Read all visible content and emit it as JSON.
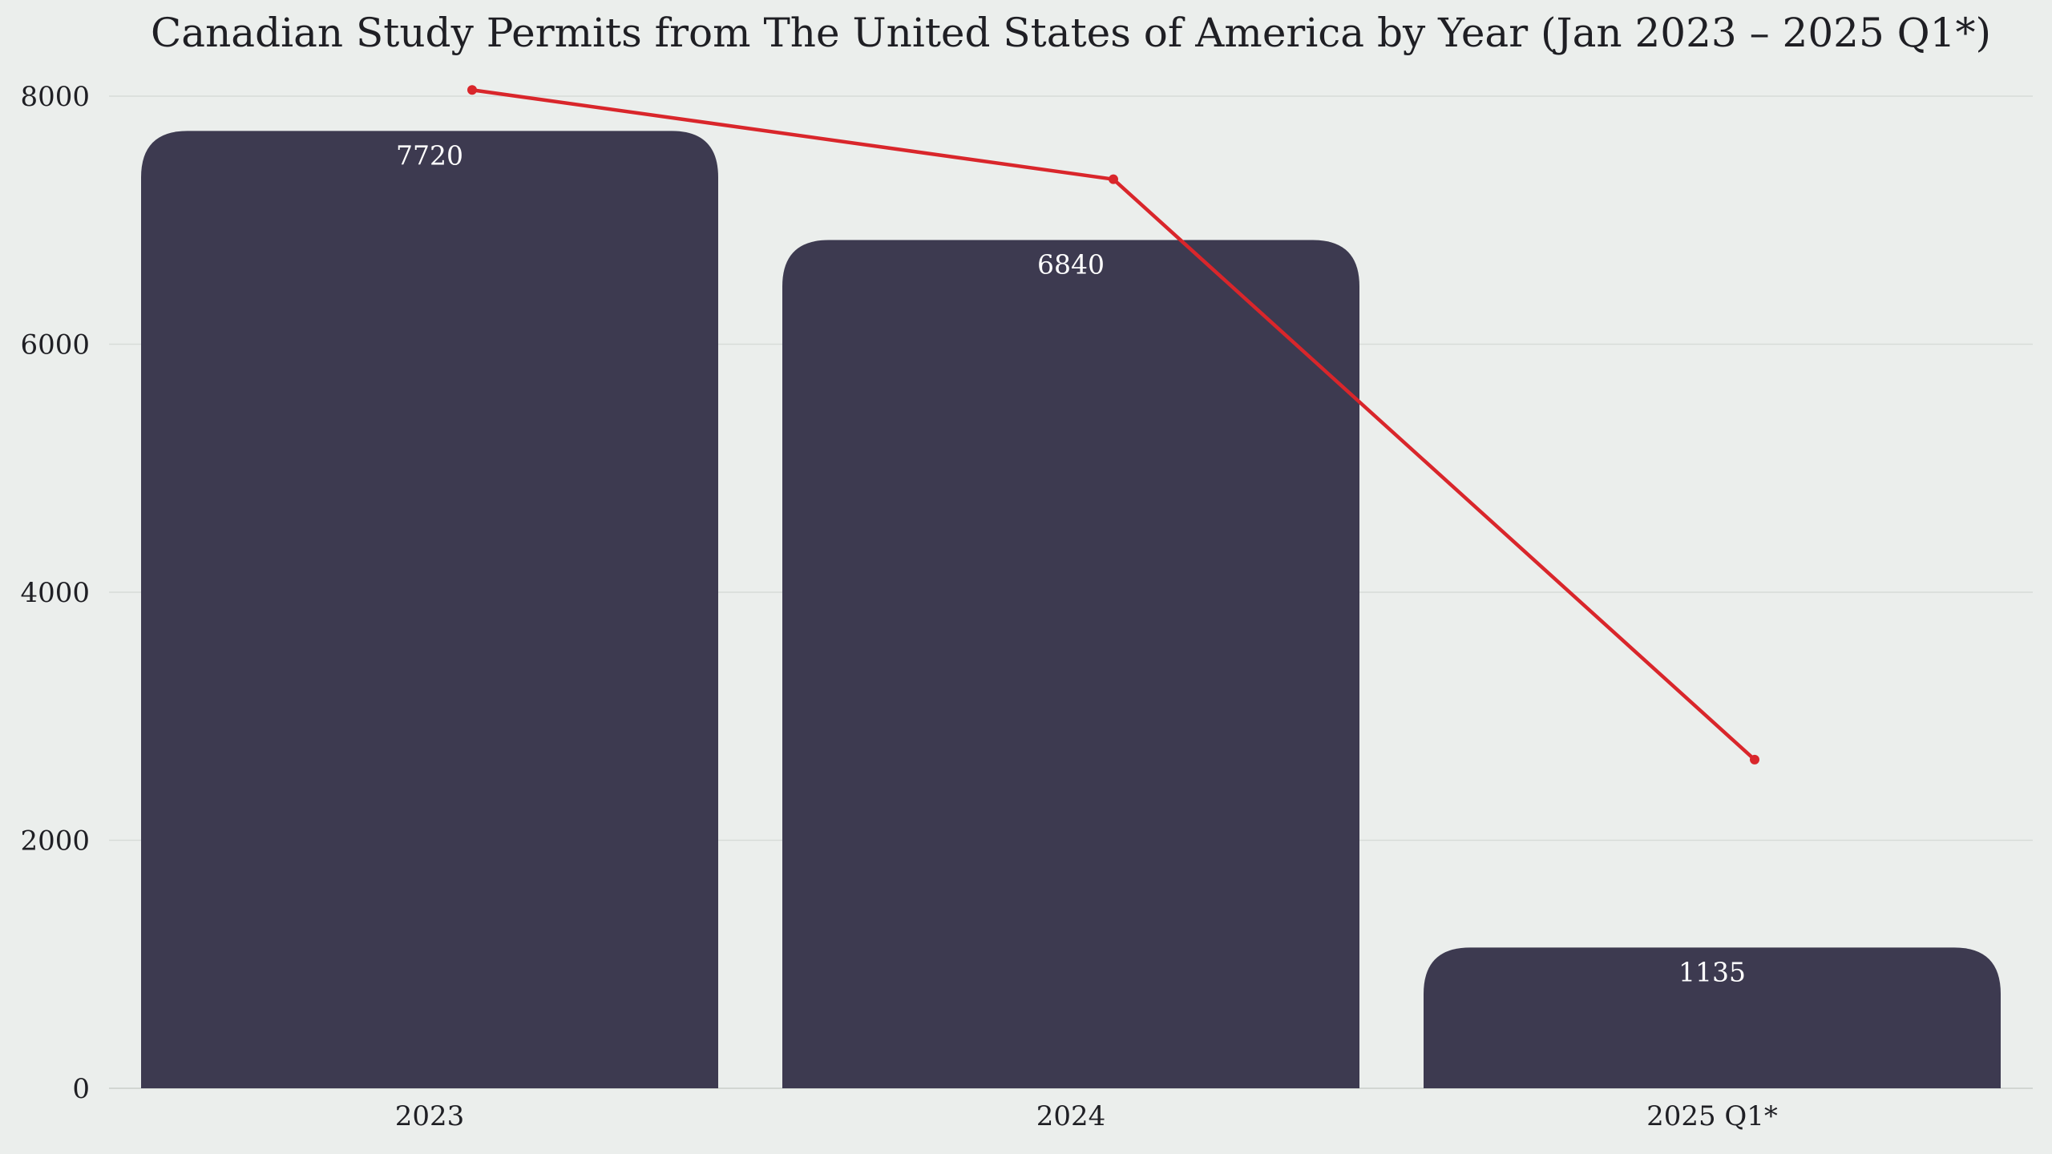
{
  "chart_data": {
    "type": "bar",
    "title": "Canadian Study Permits from The United States of America by Year (Jan 2023 – 2025 Q1*)",
    "xlabel": "",
    "ylabel": "",
    "categories": [
      "2023",
      "2024",
      "2025 Q1*"
    ],
    "series": [
      {
        "type": "bar",
        "values": [
          7720,
          6840,
          1135
        ],
        "color": "#3d3a50"
      },
      {
        "type": "line",
        "values": [
          8050,
          7330,
          2650
        ],
        "color": "#d9262b"
      }
    ],
    "ylim": [
      0,
      8000
    ],
    "yticks": [
      "0",
      "2000",
      "4000",
      "6000",
      "8000"
    ],
    "grid": true,
    "legend": "none"
  }
}
